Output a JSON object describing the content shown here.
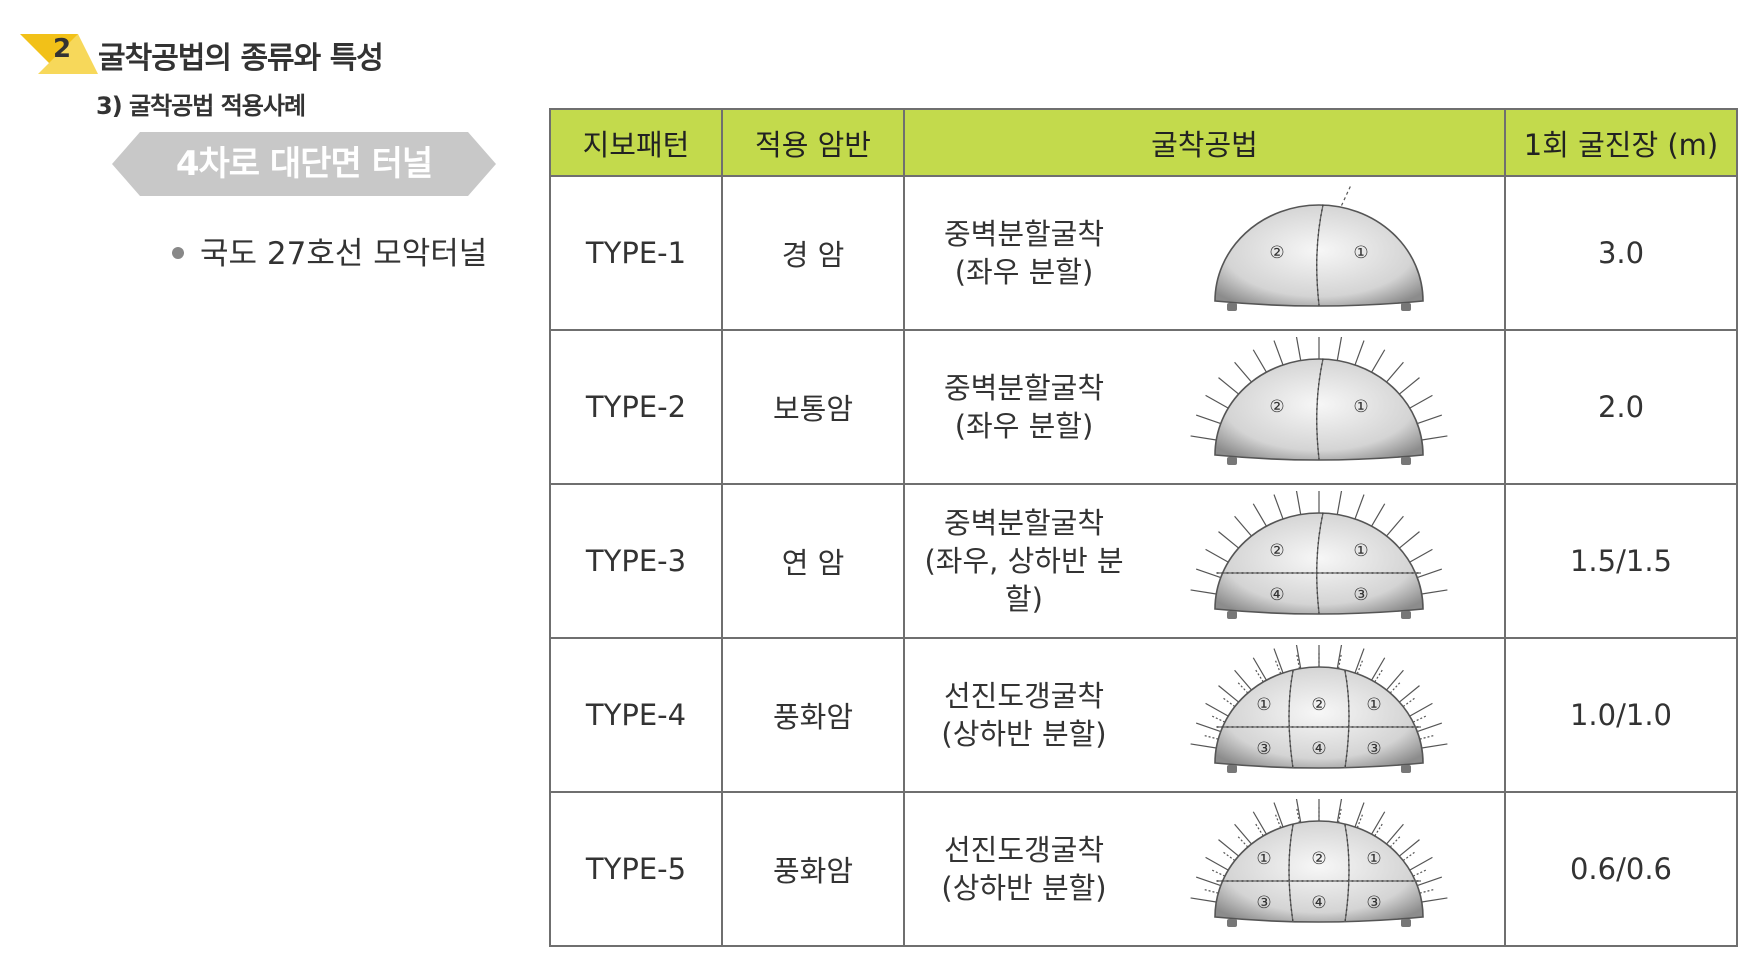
{
  "section": {
    "number": "2",
    "title": "굴착공법의 종류와 특성"
  },
  "subsection": "3) 굴착공법 적용사례",
  "banner": "4차로 대단면 터널",
  "bullet": "국도 27호선 모악터널",
  "table": {
    "headers": [
      "지보패턴",
      "적용 암반",
      "굴착공법",
      "1회 굴진장 (m)"
    ],
    "rows": [
      {
        "pattern": "TYPE-1",
        "rock": "경 암",
        "method_line1": "중벽분할굴착",
        "method_line2": "(좌우 분할)",
        "advance": "3.0",
        "diagram": {
          "bolt_rows": 0,
          "bench": false,
          "guide": false,
          "labels_top": [
            "②",
            "①"
          ],
          "labels_bottom": []
        }
      },
      {
        "pattern": "TYPE-2",
        "rock": "보통암",
        "method_line1": "중벽분할굴착",
        "method_line2": "(좌우 분할)",
        "advance": "2.0",
        "diagram": {
          "bolt_rows": 1,
          "bench": false,
          "guide": false,
          "labels_top": [
            "②",
            "①"
          ],
          "labels_bottom": []
        }
      },
      {
        "pattern": "TYPE-3",
        "rock": "연 암",
        "method_line1": "중벽분할굴착",
        "method_line2": "(좌우, 상하반 분할)",
        "advance": "1.5/1.5",
        "diagram": {
          "bolt_rows": 1,
          "bench": true,
          "guide": false,
          "labels_top": [
            "②",
            "①"
          ],
          "labels_bottom": [
            "④",
            "③"
          ]
        }
      },
      {
        "pattern": "TYPE-4",
        "rock": "풍화암",
        "method_line1": "선진도갱굴착",
        "method_line2": "(상하반 분할)",
        "advance": "1.0/1.0",
        "diagram": {
          "bolt_rows": 2,
          "bench": true,
          "guide": true,
          "labels_top": [
            "①",
            "②",
            "①"
          ],
          "labels_bottom": [
            "③",
            "④",
            "③"
          ]
        }
      },
      {
        "pattern": "TYPE-5",
        "rock": "풍화암",
        "method_line1": "선진도갱굴착",
        "method_line2": "(상하반 분할)",
        "advance": "0.6/0.6",
        "diagram": {
          "bolt_rows": 2,
          "bench": true,
          "guide": true,
          "labels_top": [
            "①",
            "②",
            "①"
          ],
          "labels_bottom": [
            "③",
            "④",
            "③"
          ]
        }
      }
    ]
  },
  "colors": {
    "header_bg": "#c3da4c",
    "accent_yellow": "#f2c118",
    "banner_gray": "#c8c8c8"
  }
}
